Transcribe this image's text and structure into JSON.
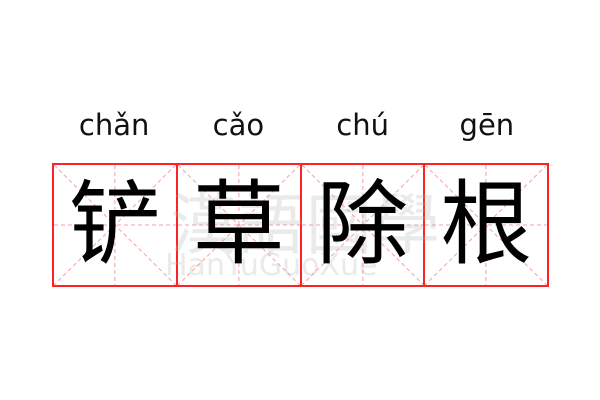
{
  "pinyin": [
    "chǎn",
    "cǎo",
    "chú",
    "gēn"
  ],
  "characters": [
    "铲",
    "草",
    "除",
    "根"
  ],
  "watermark": {
    "chinese": "漢語國學",
    "latin": "HanYuGuoXue"
  },
  "colors": {
    "grid_border": "#ff2222",
    "guide_lines": "#f5a0a0",
    "text": "#000000"
  }
}
